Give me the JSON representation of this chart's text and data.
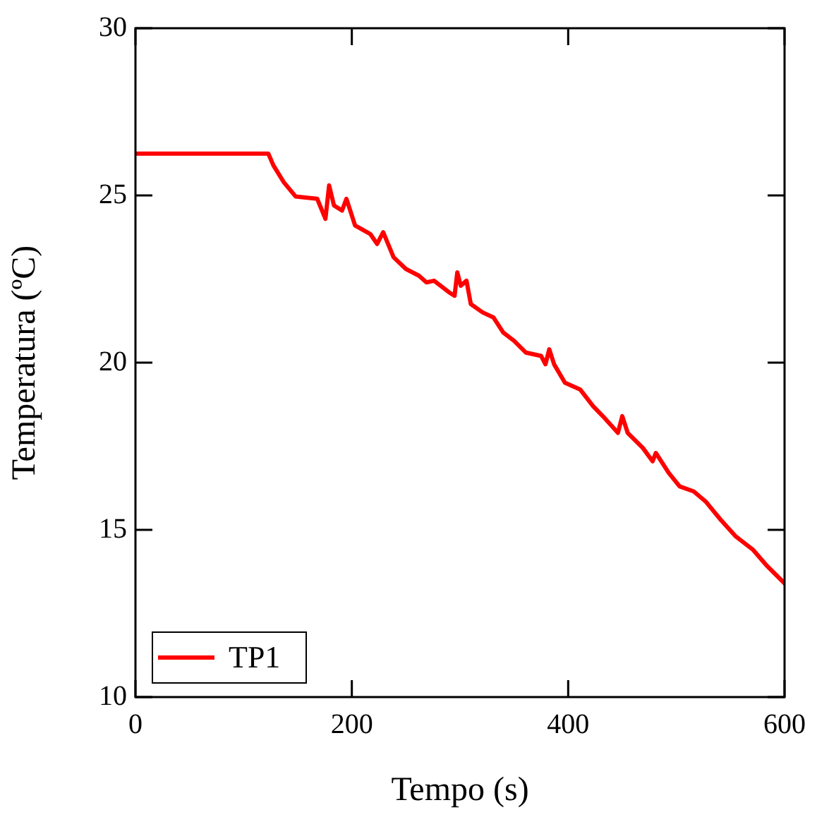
{
  "chart_data": {
    "type": "line",
    "xlabel": "Tempo (s)",
    "ylabel": "Temperatura (ºC)",
    "xlim": [
      0,
      600
    ],
    "ylim": [
      10,
      30
    ],
    "xticks": [
      0,
      200,
      400,
      600
    ],
    "yticks": [
      10,
      15,
      20,
      25,
      30
    ],
    "legend": "bottom left",
    "marker": "none",
    "line_style": "solid",
    "series": [
      {
        "name": "TP1",
        "color": "#ff0000",
        "x": [
          0,
          122.8,
          127.5,
          137,
          148,
          168,
          175.6,
          179,
          183.5,
          191,
          195,
          203,
          217,
          223.4,
          229,
          238.6,
          250,
          262,
          269,
          276,
          290,
          295,
          297.5,
          300.7,
          306,
          310,
          321,
          331,
          340,
          350,
          361,
          375,
          379,
          382.5,
          387,
          397,
          411,
          423,
          432,
          446,
          450,
          455,
          469,
          478,
          481,
          493,
          503,
          516,
          527,
          541,
          555,
          571,
          583,
          600
        ],
        "values": [
          26.25,
          26.25,
          25.9,
          25.4,
          24.97,
          24.9,
          24.3,
          25.3,
          24.7,
          24.55,
          24.9,
          24.1,
          23.85,
          23.55,
          23.9,
          23.15,
          22.8,
          22.6,
          22.4,
          22.45,
          22.1,
          22.0,
          22.7,
          22.3,
          22.45,
          21.75,
          21.5,
          21.35,
          20.9,
          20.65,
          20.3,
          20.2,
          19.95,
          20.4,
          19.95,
          19.4,
          19.2,
          18.7,
          18.4,
          17.9,
          18.4,
          17.9,
          17.45,
          17.05,
          17.3,
          16.7,
          16.3,
          16.15,
          15.85,
          15.3,
          14.8,
          14.4,
          13.95,
          13.4
        ]
      }
    ]
  }
}
